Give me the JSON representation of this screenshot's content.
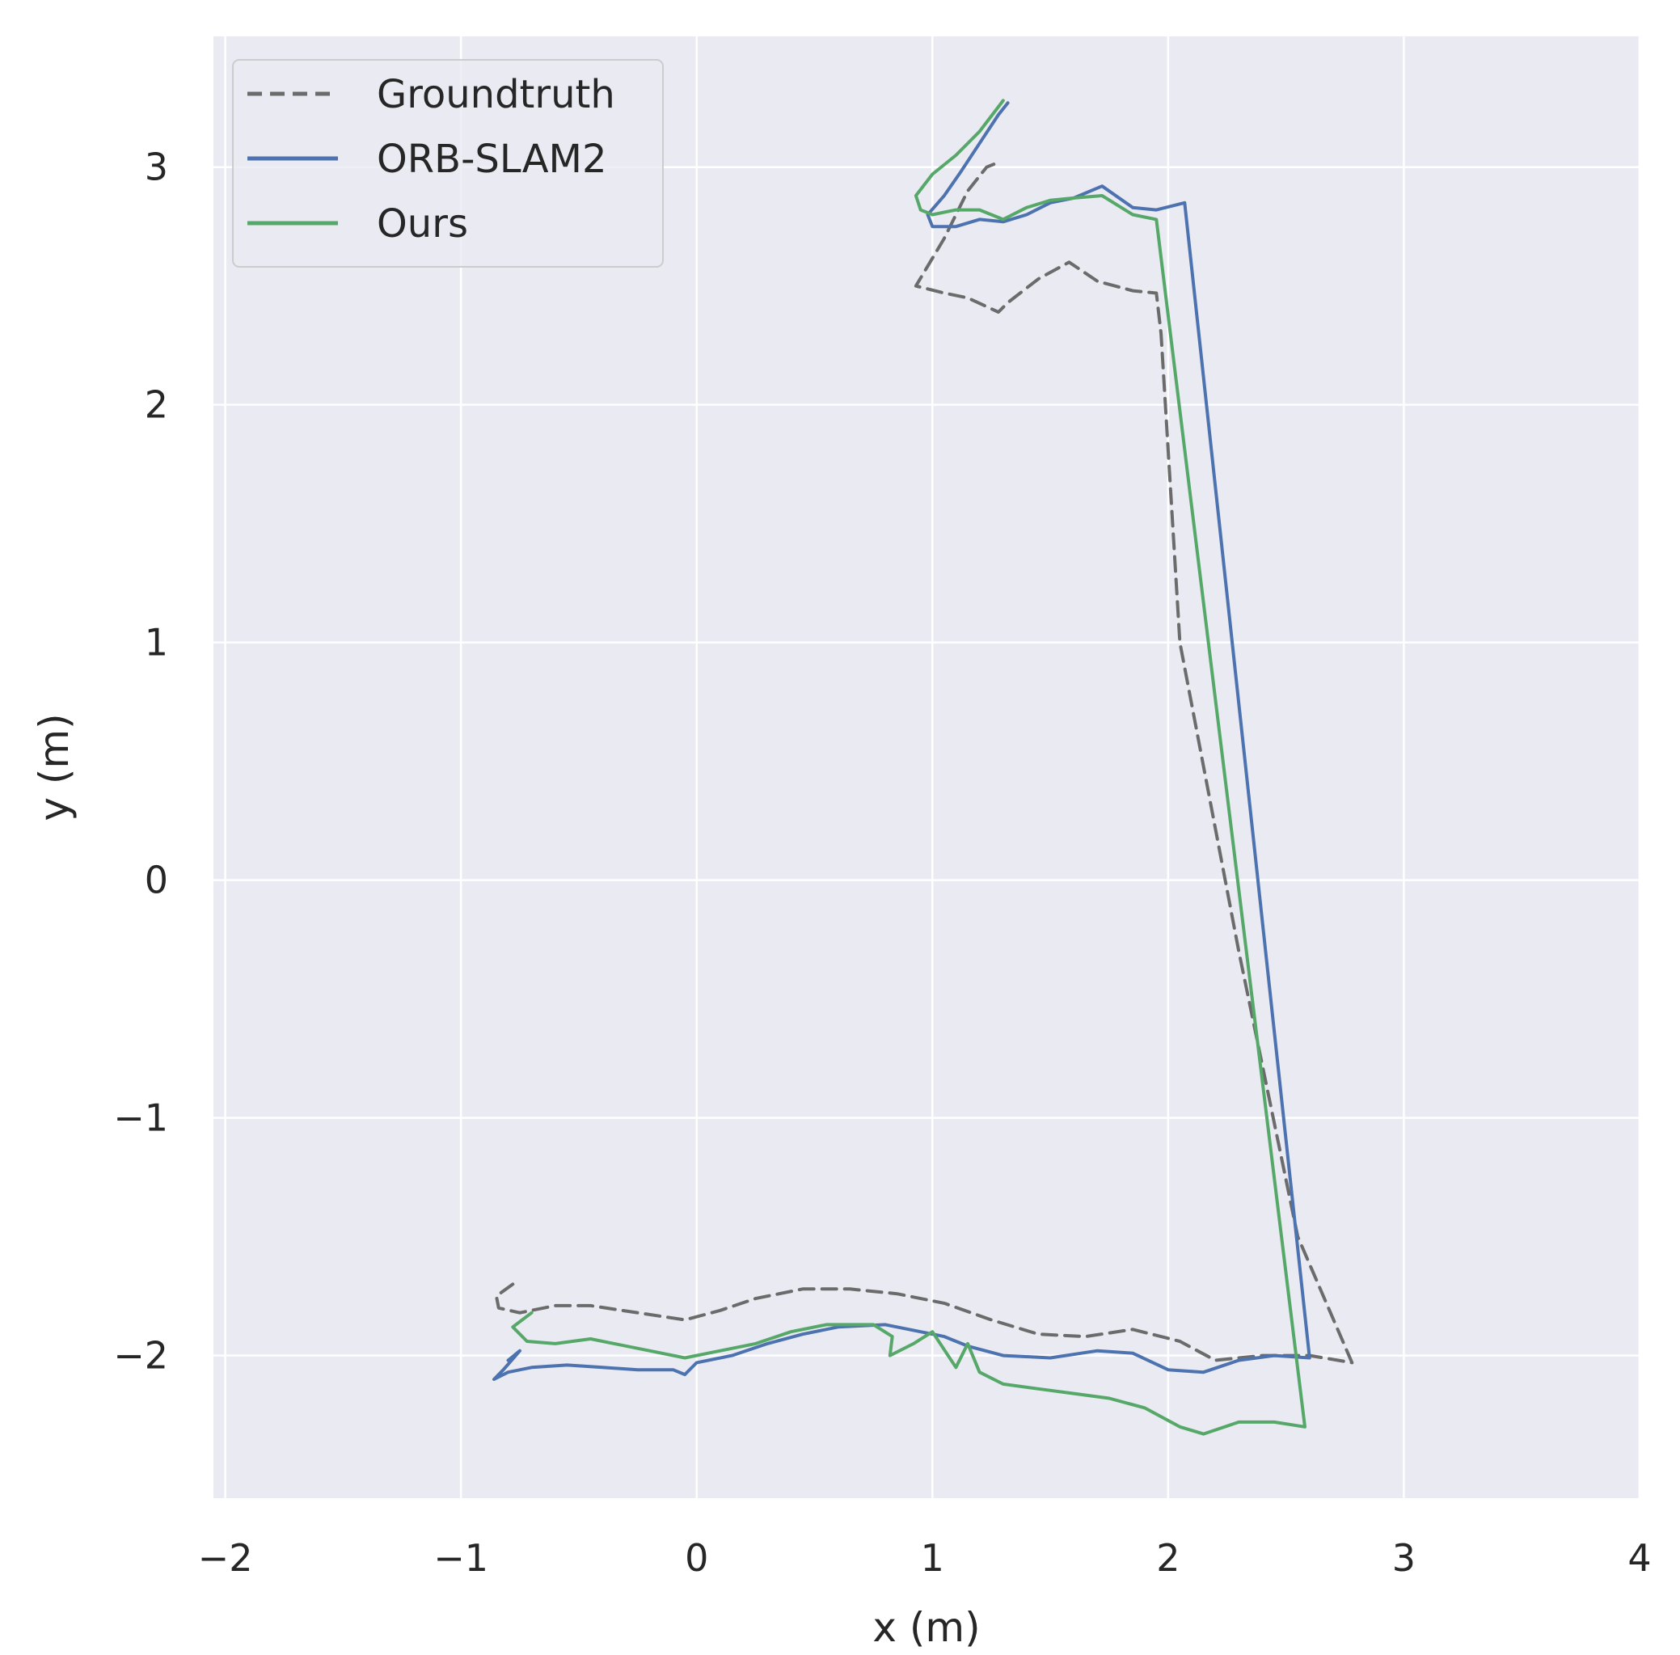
{
  "chart_data": {
    "type": "line",
    "xlabel": "x (m)",
    "ylabel": "y (m)",
    "xlim": [
      -2.05,
      4.0
    ],
    "ylim": [
      -2.6,
      3.55
    ],
    "xticks": [
      -2,
      -1,
      0,
      1,
      2,
      3,
      4
    ],
    "yticks": [
      -2,
      -1,
      0,
      1,
      2,
      3
    ],
    "xtick_labels": [
      "−2",
      "−1",
      "0",
      "1",
      "2",
      "3",
      "4"
    ],
    "ytick_labels": [
      "−2",
      "−1",
      "0",
      "1",
      "2",
      "3"
    ],
    "grid": true,
    "legend_position": "upper-left",
    "colors": {
      "background": "#eaeaf2",
      "grid": "#ffffff",
      "groundtruth": "#6b6b6b",
      "orbslam": "#4c72b0",
      "ours": "#55a868"
    },
    "series": [
      {
        "name": "Groundtruth",
        "style": "dashed",
        "color": "#6b6b6b",
        "points": [
          [
            -0.78,
            -1.7
          ],
          [
            -0.85,
            -1.75
          ],
          [
            -0.84,
            -1.8
          ],
          [
            -0.75,
            -1.82
          ],
          [
            -0.6,
            -1.79
          ],
          [
            -0.45,
            -1.79
          ],
          [
            -0.25,
            -1.82
          ],
          [
            -0.05,
            -1.85
          ],
          [
            0.1,
            -1.81
          ],
          [
            0.25,
            -1.76
          ],
          [
            0.45,
            -1.72
          ],
          [
            0.65,
            -1.72
          ],
          [
            0.85,
            -1.74
          ],
          [
            1.05,
            -1.78
          ],
          [
            1.25,
            -1.85
          ],
          [
            1.45,
            -1.91
          ],
          [
            1.65,
            -1.92
          ],
          [
            1.85,
            -1.89
          ],
          [
            2.05,
            -1.94
          ],
          [
            2.2,
            -2.02
          ],
          [
            2.4,
            -2.0
          ],
          [
            2.6,
            -2.0
          ],
          [
            2.78,
            -2.03
          ],
          [
            2.55,
            -1.5
          ],
          [
            2.3,
            -0.3
          ],
          [
            2.05,
            1.0
          ],
          [
            1.97,
            2.3
          ],
          [
            1.95,
            2.47
          ],
          [
            1.85,
            2.48
          ],
          [
            1.7,
            2.52
          ],
          [
            1.58,
            2.6
          ],
          [
            1.45,
            2.53
          ],
          [
            1.32,
            2.43
          ],
          [
            1.28,
            2.39
          ],
          [
            1.15,
            2.45
          ],
          [
            1.05,
            2.47
          ],
          [
            0.93,
            2.5
          ],
          [
            1.05,
            2.7
          ],
          [
            1.15,
            2.9
          ],
          [
            1.23,
            3.0
          ],
          [
            1.28,
            3.02
          ]
        ]
      },
      {
        "name": "ORB-SLAM2",
        "style": "solid",
        "color": "#4c72b0",
        "points": [
          [
            -0.8,
            -2.02
          ],
          [
            -0.75,
            -1.98
          ],
          [
            -0.82,
            -2.06
          ],
          [
            -0.86,
            -2.1
          ],
          [
            -0.8,
            -2.07
          ],
          [
            -0.7,
            -2.05
          ],
          [
            -0.55,
            -2.04
          ],
          [
            -0.4,
            -2.05
          ],
          [
            -0.25,
            -2.06
          ],
          [
            -0.1,
            -2.06
          ],
          [
            -0.05,
            -2.08
          ],
          [
            0.0,
            -2.03
          ],
          [
            0.15,
            -2.0
          ],
          [
            0.3,
            -1.95
          ],
          [
            0.45,
            -1.91
          ],
          [
            0.6,
            -1.88
          ],
          [
            0.8,
            -1.87
          ],
          [
            0.95,
            -1.9
          ],
          [
            1.05,
            -1.92
          ],
          [
            1.15,
            -1.96
          ],
          [
            1.3,
            -2.0
          ],
          [
            1.5,
            -2.01
          ],
          [
            1.7,
            -1.98
          ],
          [
            1.85,
            -1.99
          ],
          [
            2.0,
            -2.06
          ],
          [
            2.15,
            -2.07
          ],
          [
            2.3,
            -2.02
          ],
          [
            2.45,
            -2.0
          ],
          [
            2.6,
            -2.01
          ],
          [
            2.07,
            2.85
          ],
          [
            1.95,
            2.82
          ],
          [
            1.85,
            2.83
          ],
          [
            1.72,
            2.92
          ],
          [
            1.6,
            2.87
          ],
          [
            1.5,
            2.85
          ],
          [
            1.4,
            2.8
          ],
          [
            1.3,
            2.77
          ],
          [
            1.2,
            2.78
          ],
          [
            1.1,
            2.75
          ],
          [
            1.0,
            2.75
          ],
          [
            0.98,
            2.8
          ],
          [
            1.05,
            2.88
          ],
          [
            1.12,
            2.98
          ],
          [
            1.2,
            3.1
          ],
          [
            1.28,
            3.22
          ],
          [
            1.32,
            3.27
          ]
        ]
      },
      {
        "name": "Ours",
        "style": "solid",
        "color": "#55a868",
        "points": [
          [
            -0.7,
            -1.82
          ],
          [
            -0.78,
            -1.88
          ],
          [
            -0.72,
            -1.94
          ],
          [
            -0.6,
            -1.95
          ],
          [
            -0.45,
            -1.93
          ],
          [
            -0.35,
            -1.95
          ],
          [
            -0.2,
            -1.98
          ],
          [
            -0.05,
            -2.01
          ],
          [
            0.1,
            -1.98
          ],
          [
            0.25,
            -1.95
          ],
          [
            0.4,
            -1.9
          ],
          [
            0.55,
            -1.87
          ],
          [
            0.75,
            -1.87
          ],
          [
            0.83,
            -1.92
          ],
          [
            0.82,
            -2.0
          ],
          [
            0.92,
            -1.95
          ],
          [
            1.0,
            -1.9
          ],
          [
            1.1,
            -2.05
          ],
          [
            1.15,
            -1.95
          ],
          [
            1.2,
            -2.07
          ],
          [
            1.3,
            -2.12
          ],
          [
            1.45,
            -2.14
          ],
          [
            1.6,
            -2.16
          ],
          [
            1.75,
            -2.18
          ],
          [
            1.9,
            -2.22
          ],
          [
            2.05,
            -2.3
          ],
          [
            2.15,
            -2.33
          ],
          [
            2.3,
            -2.28
          ],
          [
            2.45,
            -2.28
          ],
          [
            2.58,
            -2.3
          ],
          [
            1.95,
            2.78
          ],
          [
            1.85,
            2.8
          ],
          [
            1.72,
            2.88
          ],
          [
            1.6,
            2.87
          ],
          [
            1.5,
            2.86
          ],
          [
            1.4,
            2.83
          ],
          [
            1.3,
            2.78
          ],
          [
            1.2,
            2.82
          ],
          [
            1.1,
            2.82
          ],
          [
            1.0,
            2.8
          ],
          [
            0.95,
            2.82
          ],
          [
            0.93,
            2.88
          ],
          [
            1.0,
            2.97
          ],
          [
            1.1,
            3.05
          ],
          [
            1.2,
            3.15
          ],
          [
            1.3,
            3.28
          ]
        ]
      }
    ]
  }
}
